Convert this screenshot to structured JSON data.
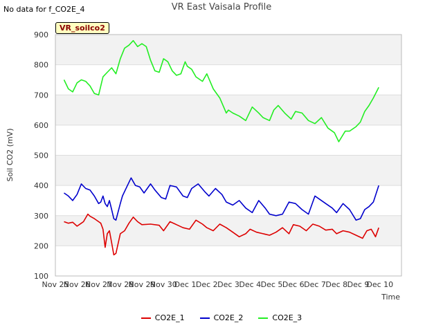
{
  "top_note": "No data for f_CO2E_4",
  "chart_data": {
    "type": "line",
    "title": "VR East Vaisala Profile",
    "site_label": "VR_soilco2",
    "xlabel": "Time",
    "ylabel": "Soil CO2 (mV)",
    "xlim": [
      0,
      16
    ],
    "ylim": [
      100,
      900
    ],
    "grid": true,
    "banded_background": true,
    "legend_position": "bottom-center",
    "x_tick_labels": [
      "Nov 25",
      "Nov 26",
      "Nov 27",
      "Nov 28",
      "Nov 29",
      "Nov 30",
      "Dec 1",
      "Dec 2",
      "Dec 3",
      "Dec 4",
      "Dec 5",
      "Dec 6",
      "Dec 7",
      "Dec 8",
      "Dec 9",
      "Dec 10"
    ],
    "y_ticks": [
      100,
      200,
      300,
      400,
      500,
      600,
      700,
      800,
      900
    ],
    "series": [
      {
        "name": "CO2E_1",
        "color": "#dd0000",
        "x": [
          0.4,
          0.6,
          0.8,
          1.0,
          1.2,
          1.3,
          1.5,
          1.6,
          1.8,
          2.0,
          2.1,
          2.2,
          2.3,
          2.4,
          2.5,
          2.6,
          2.7,
          2.8,
          3.0,
          3.2,
          3.4,
          3.6,
          3.8,
          4.0,
          4.4,
          4.8,
          5.0,
          5.3,
          5.6,
          5.9,
          6.2,
          6.5,
          6.8,
          7.0,
          7.3,
          7.6,
          7.9,
          8.2,
          8.5,
          8.8,
          9.0,
          9.3,
          9.6,
          9.9,
          10.2,
          10.5,
          10.8,
          11.0,
          11.3,
          11.6,
          11.9,
          12.2,
          12.5,
          12.8,
          13.0,
          13.3,
          13.6,
          13.9,
          14.2,
          14.4,
          14.6,
          14.8,
          14.95
        ],
        "values": [
          280,
          275,
          278,
          265,
          275,
          280,
          305,
          298,
          290,
          280,
          275,
          255,
          195,
          240,
          250,
          210,
          170,
          175,
          240,
          250,
          275,
          295,
          280,
          270,
          272,
          268,
          250,
          280,
          270,
          260,
          255,
          285,
          272,
          260,
          250,
          272,
          260,
          245,
          230,
          240,
          255,
          245,
          240,
          235,
          245,
          260,
          240,
          270,
          265,
          250,
          272,
          265,
          252,
          255,
          240,
          250,
          245,
          235,
          225,
          250,
          255,
          230,
          260
        ]
      },
      {
        "name": "CO2E_2",
        "color": "#0000cc",
        "x": [
          0.4,
          0.6,
          0.8,
          1.0,
          1.2,
          1.4,
          1.6,
          1.8,
          2.0,
          2.1,
          2.2,
          2.3,
          2.4,
          2.5,
          2.6,
          2.7,
          2.8,
          3.0,
          3.1,
          3.3,
          3.5,
          3.7,
          3.9,
          4.1,
          4.4,
          4.6,
          4.9,
          5.1,
          5.3,
          5.6,
          5.9,
          6.1,
          6.3,
          6.6,
          6.9,
          7.1,
          7.4,
          7.7,
          7.9,
          8.2,
          8.5,
          8.8,
          9.1,
          9.4,
          9.7,
          9.9,
          10.2,
          10.5,
          10.8,
          11.1,
          11.4,
          11.7,
          12.0,
          12.2,
          12.5,
          12.8,
          13.0,
          13.3,
          13.6,
          13.9,
          14.1,
          14.3,
          14.5,
          14.7,
          14.95
        ],
        "values": [
          375,
          365,
          350,
          370,
          405,
          390,
          385,
          365,
          340,
          345,
          365,
          340,
          330,
          350,
          320,
          290,
          285,
          340,
          365,
          395,
          425,
          400,
          395,
          375,
          405,
          385,
          360,
          355,
          400,
          395,
          365,
          360,
          390,
          405,
          380,
          365,
          390,
          370,
          345,
          335,
          350,
          325,
          310,
          350,
          325,
          305,
          300,
          305,
          345,
          340,
          320,
          305,
          365,
          355,
          340,
          325,
          310,
          340,
          320,
          285,
          290,
          320,
          330,
          345,
          400
        ]
      },
      {
        "name": "CO2E_3",
        "color": "#22ee22",
        "x": [
          0.4,
          0.6,
          0.8,
          1.0,
          1.2,
          1.4,
          1.6,
          1.8,
          2.0,
          2.2,
          2.4,
          2.6,
          2.8,
          3.0,
          3.2,
          3.4,
          3.6,
          3.8,
          4.0,
          4.2,
          4.4,
          4.6,
          4.8,
          5.0,
          5.2,
          5.4,
          5.6,
          5.8,
          6.0,
          6.1,
          6.3,
          6.5,
          6.8,
          7.0,
          7.3,
          7.6,
          7.9,
          8.0,
          8.2,
          8.5,
          8.8,
          9.1,
          9.4,
          9.6,
          9.9,
          10.1,
          10.3,
          10.6,
          10.9,
          11.1,
          11.4,
          11.7,
          12.0,
          12.3,
          12.6,
          12.9,
          13.1,
          13.4,
          13.6,
          13.9,
          14.1,
          14.3,
          14.5,
          14.7,
          14.95
        ],
        "values": [
          750,
          720,
          710,
          740,
          750,
          745,
          730,
          705,
          700,
          760,
          775,
          790,
          770,
          820,
          855,
          865,
          880,
          860,
          870,
          860,
          815,
          780,
          775,
          820,
          810,
          780,
          765,
          770,
          810,
          795,
          785,
          760,
          745,
          770,
          720,
          690,
          640,
          650,
          640,
          630,
          615,
          660,
          640,
          625,
          615,
          650,
          665,
          640,
          620,
          645,
          640,
          615,
          605,
          625,
          590,
          575,
          545,
          580,
          580,
          595,
          610,
          645,
          665,
          690,
          725
        ]
      }
    ]
  }
}
